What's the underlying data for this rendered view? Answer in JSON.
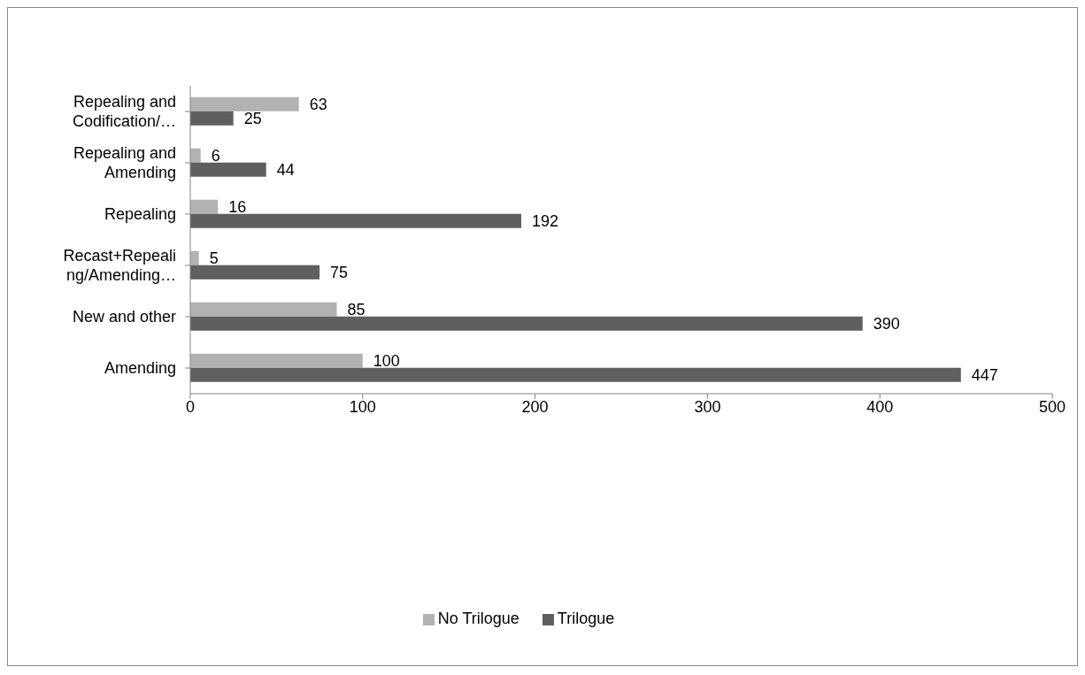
{
  "chart_data": {
    "type": "bar",
    "orientation": "horizontal",
    "categories": [
      "Repealing and Codification/…",
      "Repealing and Amending",
      "Repealing",
      "Recast+Repealing/Amending…",
      "New and other",
      "Amending"
    ],
    "series": [
      {
        "name": "No Trilogue",
        "color": "#b2b2b2",
        "values": [
          63,
          6,
          16,
          5,
          85,
          100
        ]
      },
      {
        "name": "Trilogue",
        "color": "#5f5f5f",
        "values": [
          25,
          44,
          192,
          75,
          390,
          447
        ]
      }
    ],
    "xlim": [
      0,
      500
    ],
    "xticks": [
      0,
      100,
      200,
      300,
      400,
      500
    ],
    "grid": false,
    "legend": "bottom",
    "data_labels": true
  }
}
